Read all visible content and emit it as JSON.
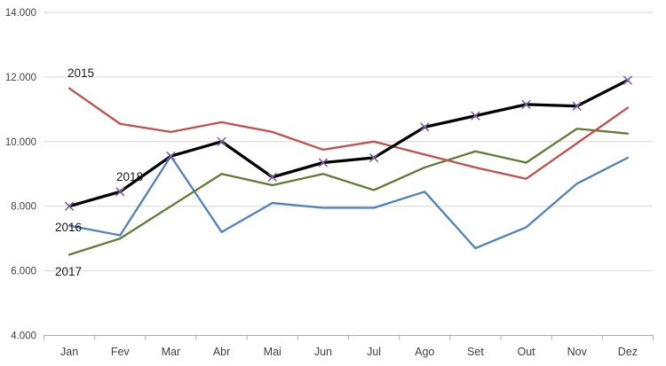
{
  "chart_data": {
    "type": "line",
    "title": "",
    "xlabel": "",
    "ylabel": "",
    "categories": [
      "Jan",
      "Fev",
      "Mar",
      "Abr",
      "Mai",
      "Jun",
      "Jul",
      "Ago",
      "Set",
      "Out",
      "Nov",
      "Dez"
    ],
    "series": [
      {
        "name": "2016",
        "color": "#4F81BD",
        "line_width": 2.3,
        "marker": null,
        "values": [
          7400,
          7100,
          9550,
          7200,
          8100,
          7950,
          7950,
          8450,
          6700,
          7350,
          8700,
          9500
        ]
      },
      {
        "name": "2017",
        "color": "#5F7B34",
        "line_width": 2.3,
        "marker": null,
        "values": [
          6500,
          7000,
          8000,
          9000,
          8650,
          9000,
          8500,
          9200,
          9700,
          9350,
          10400,
          10250
        ]
      },
      {
        "name": "2015",
        "color": "#C0504D",
        "line_width": 2.3,
        "marker": null,
        "values": [
          11650,
          10550,
          10300,
          10600,
          10300,
          9750,
          10000,
          9600,
          9200,
          8850,
          9950,
          11050
        ]
      },
      {
        "name": "2018",
        "color": "#000000",
        "line_width": 3.3,
        "marker": {
          "shape": "x",
          "color": "#8064A2",
          "size": 4.2,
          "stroke_width": 1.6
        },
        "values": [
          8000,
          8450,
          9550,
          10000,
          8900,
          9350,
          9500,
          10450,
          10800,
          11150,
          11100,
          11900
        ]
      }
    ],
    "ylim": [
      4000,
      14000
    ],
    "ytick_step": 2000,
    "ytick_labels": [
      "4.000",
      "6.000",
      "8.000",
      "10.000",
      "12.000",
      "14.000"
    ],
    "grid": "horizontal-major",
    "legend": "inline-series-labels",
    "colors": {
      "gridline": "#D6D6D6",
      "axis_line": "#ACACAC",
      "tick": "#ACACAC",
      "axis_text": "#3f3f3f",
      "background": "#ffffff"
    }
  }
}
